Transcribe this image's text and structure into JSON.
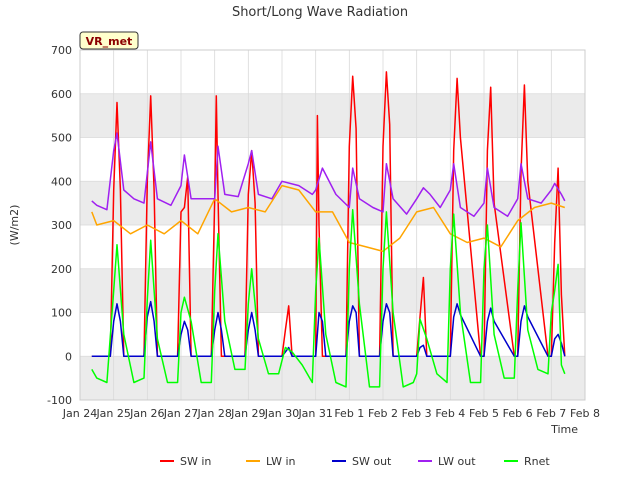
{
  "chart_data": {
    "type": "line",
    "title": "Short/Long Wave Radiation",
    "xlabel": "Time",
    "ylabel": "(W/m2)",
    "station_label": "VR_met",
    "ylim": [
      -100,
      700
    ],
    "yticks": [
      -100,
      0,
      100,
      200,
      300,
      400,
      500,
      600,
      700
    ],
    "xlim": [
      0,
      15
    ],
    "xticks": [
      {
        "pos": 0,
        "label": "Jan 24"
      },
      {
        "pos": 1,
        "label": "Jan 25"
      },
      {
        "pos": 2,
        "label": "Jan 26"
      },
      {
        "pos": 3,
        "label": "Jan 27"
      },
      {
        "pos": 4,
        "label": "Jan 28"
      },
      {
        "pos": 5,
        "label": "Jan 29"
      },
      {
        "pos": 6,
        "label": "Jan 30"
      },
      {
        "pos": 7,
        "label": "Jan 31"
      },
      {
        "pos": 8,
        "label": "Feb 1"
      },
      {
        "pos": 9,
        "label": "Feb 2"
      },
      {
        "pos": 10,
        "label": "Feb 3"
      },
      {
        "pos": 11,
        "label": "Feb 4"
      },
      {
        "pos": 12,
        "label": "Feb 5"
      },
      {
        "pos": 13,
        "label": "Feb 6"
      },
      {
        "pos": 14,
        "label": "Feb 7"
      },
      {
        "pos": 15,
        "label": "Feb 8"
      }
    ],
    "grid": true,
    "legend_position": "bottom",
    "series": [
      {
        "name": "SW in",
        "color": "#ff0000",
        "x": [
          0.35,
          0.9,
          1.0,
          1.1,
          1.2,
          1.3,
          1.9,
          2.0,
          2.1,
          2.2,
          2.3,
          2.9,
          3.0,
          3.1,
          3.2,
          3.3,
          3.9,
          4.0,
          4.05,
          4.1,
          4.2,
          4.3,
          4.9,
          5.0,
          5.1,
          5.2,
          5.3,
          5.9,
          6.0,
          6.1,
          6.2,
          6.3,
          6.9,
          7.0,
          7.05,
          7.1,
          7.2,
          7.3,
          7.9,
          8.0,
          8.1,
          8.2,
          8.3,
          8.9,
          9.0,
          9.1,
          9.2,
          9.3,
          9.9,
          10.0,
          10.1,
          10.2,
          10.3,
          10.9,
          11.0,
          11.1,
          11.2,
          11.3,
          11.9,
          12.0,
          12.1,
          12.2,
          12.3,
          12.9,
          13.0,
          13.1,
          13.2,
          13.3,
          13.9,
          14.0,
          14.1,
          14.2,
          14.3,
          14.4
        ],
        "y": [
          0,
          0,
          380,
          580,
          380,
          0,
          0,
          400,
          595,
          380,
          0,
          0,
          330,
          340,
          410,
          0,
          0,
          360,
          595,
          370,
          0,
          0,
          0,
          370,
          470,
          350,
          0,
          0,
          0,
          60,
          115,
          0,
          0,
          0,
          550,
          300,
          0,
          0,
          0,
          480,
          640,
          520,
          0,
          0,
          480,
          650,
          530,
          0,
          0,
          0,
          90,
          180,
          0,
          0,
          0,
          470,
          635,
          500,
          0,
          0,
          470,
          615,
          350,
          0,
          0,
          420,
          620,
          400,
          0,
          0,
          260,
          430,
          140,
          0
        ]
      },
      {
        "name": "LW in",
        "color": "#ffa500",
        "x": [
          0.35,
          0.5,
          1.0,
          1.5,
          2.0,
          2.5,
          3.0,
          3.5,
          4.0,
          4.5,
          5.0,
          5.5,
          6.0,
          6.5,
          7.0,
          7.5,
          8.0,
          8.5,
          9.0,
          9.5,
          10.0,
          10.5,
          11.0,
          11.5,
          12.0,
          12.5,
          13.0,
          13.5,
          14.0,
          14.4
        ],
        "y": [
          330,
          300,
          310,
          280,
          300,
          280,
          310,
          280,
          360,
          330,
          340,
          330,
          390,
          380,
          330,
          330,
          260,
          250,
          240,
          270,
          330,
          340,
          280,
          260,
          270,
          250,
          310,
          340,
          350,
          340
        ]
      },
      {
        "name": "SW out",
        "color": "#0000cc",
        "x": [
          0.35,
          0.9,
          1.0,
          1.1,
          1.2,
          1.3,
          1.9,
          2.0,
          2.1,
          2.2,
          2.3,
          2.9,
          3.0,
          3.1,
          3.2,
          3.3,
          3.9,
          4.0,
          4.1,
          4.2,
          4.3,
          4.9,
          5.0,
          5.1,
          5.2,
          5.3,
          5.9,
          6.0,
          6.1,
          6.2,
          6.3,
          6.9,
          7.0,
          7.1,
          7.2,
          7.3,
          7.9,
          8.0,
          8.1,
          8.2,
          8.3,
          8.9,
          9.0,
          9.1,
          9.2,
          9.3,
          9.9,
          10.0,
          10.1,
          10.2,
          10.3,
          10.9,
          11.0,
          11.1,
          11.2,
          11.3,
          11.9,
          12.0,
          12.1,
          12.2,
          12.3,
          12.9,
          13.0,
          13.1,
          13.2,
          13.3,
          13.9,
          14.0,
          14.1,
          14.2,
          14.3,
          14.4
        ],
        "y": [
          0,
          0,
          80,
          120,
          80,
          0,
          0,
          90,
          125,
          80,
          0,
          0,
          50,
          80,
          60,
          0,
          0,
          60,
          100,
          60,
          0,
          0,
          60,
          100,
          60,
          0,
          0,
          0,
          10,
          20,
          0,
          0,
          0,
          100,
          80,
          0,
          0,
          80,
          115,
          100,
          0,
          0,
          80,
          120,
          100,
          0,
          0,
          0,
          20,
          25,
          0,
          0,
          0,
          90,
          120,
          95,
          0,
          0,
          80,
          110,
          80,
          0,
          0,
          80,
          115,
          90,
          0,
          0,
          40,
          50,
          30,
          0
        ]
      },
      {
        "name": "LW out",
        "color": "#a020f0",
        "x": [
          0.35,
          0.5,
          0.8,
          1.0,
          1.1,
          1.3,
          1.6,
          1.9,
          2.1,
          2.3,
          2.7,
          3.0,
          3.1,
          3.3,
          3.7,
          4.0,
          4.1,
          4.3,
          4.7,
          5.0,
          5.1,
          5.3,
          5.7,
          6.0,
          6.5,
          6.9,
          7.0,
          7.2,
          7.6,
          8.0,
          8.1,
          8.3,
          8.7,
          9.0,
          9.1,
          9.3,
          9.7,
          10.0,
          10.2,
          10.4,
          10.7,
          11.0,
          11.1,
          11.3,
          11.7,
          12.0,
          12.1,
          12.3,
          12.7,
          13.0,
          13.1,
          13.3,
          13.7,
          14.0,
          14.1,
          14.3,
          14.4
        ],
        "y": [
          355,
          345,
          335,
          470,
          510,
          380,
          360,
          350,
          490,
          360,
          345,
          390,
          460,
          360,
          360,
          360,
          480,
          370,
          365,
          440,
          470,
          370,
          360,
          400,
          390,
          370,
          380,
          430,
          370,
          340,
          430,
          360,
          340,
          330,
          440,
          360,
          325,
          360,
          385,
          370,
          340,
          380,
          440,
          340,
          320,
          350,
          430,
          340,
          320,
          360,
          440,
          360,
          350,
          380,
          395,
          370,
          355
        ]
      },
      {
        "name": "Rnet",
        "color": "#00ff00",
        "x": [
          0.35,
          0.5,
          0.8,
          1.0,
          1.1,
          1.3,
          1.6,
          1.9,
          2.0,
          2.1,
          2.3,
          2.6,
          2.9,
          3.0,
          3.1,
          3.3,
          3.6,
          3.9,
          4.0,
          4.1,
          4.3,
          4.6,
          4.9,
          5.0,
          5.1,
          5.3,
          5.6,
          5.9,
          6.0,
          6.1,
          6.3,
          6.6,
          6.9,
          7.0,
          7.1,
          7.3,
          7.6,
          7.9,
          8.0,
          8.1,
          8.3,
          8.6,
          8.9,
          9.0,
          9.1,
          9.3,
          9.6,
          9.9,
          10.0,
          10.1,
          10.3,
          10.6,
          10.9,
          11.0,
          11.1,
          11.3,
          11.6,
          11.9,
          12.0,
          12.1,
          12.3,
          12.6,
          12.9,
          13.0,
          13.1,
          13.3,
          13.6,
          13.9,
          14.0,
          14.1,
          14.2,
          14.3,
          14.4
        ],
        "y": [
          -30,
          -50,
          -60,
          150,
          255,
          50,
          -60,
          -50,
          130,
          265,
          40,
          -60,
          -60,
          100,
          135,
          80,
          -60,
          -60,
          150,
          280,
          80,
          -30,
          -30,
          120,
          200,
          40,
          -40,
          -40,
          -10,
          20,
          10,
          -20,
          -60,
          150,
          270,
          50,
          -60,
          -70,
          200,
          335,
          120,
          -70,
          -70,
          200,
          330,
          100,
          -70,
          -60,
          -40,
          85,
          40,
          -40,
          -60,
          200,
          325,
          100,
          -60,
          -60,
          200,
          300,
          50,
          -50,
          -50,
          150,
          305,
          60,
          -30,
          -40,
          100,
          150,
          210,
          -20,
          -40
        ]
      }
    ]
  }
}
